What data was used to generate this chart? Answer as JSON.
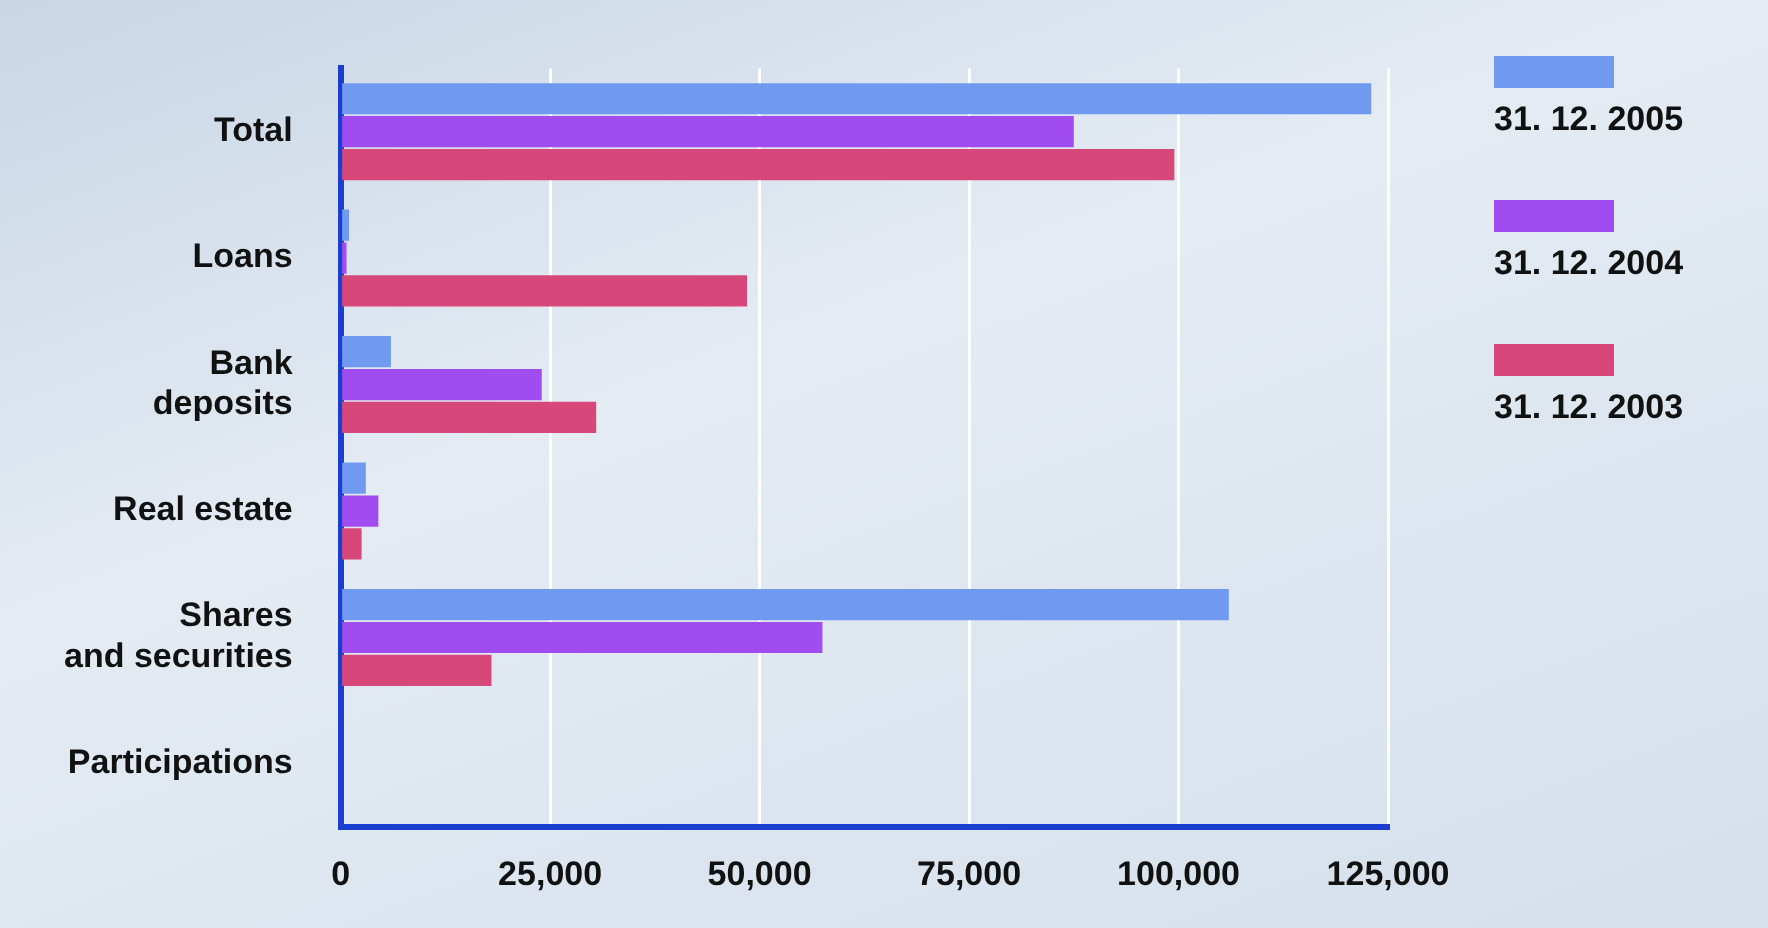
{
  "chart_data": {
    "type": "bar",
    "orientation": "horizontal",
    "categories": [
      "Total",
      "Loans",
      "Bank deposits",
      "Real estate",
      "Shares and securities",
      "Participations"
    ],
    "series": [
      {
        "name": "31. 12. 2005",
        "color": "#6f9af0",
        "values": [
          123000,
          1000,
          6000,
          3000,
          106000,
          0
        ]
      },
      {
        "name": "31. 12. 2004",
        "color": "#a04cf0",
        "values": [
          87500,
          700,
          24000,
          4500,
          57500,
          0
        ]
      },
      {
        "name": "31. 12. 2003",
        "color": "#d8477a",
        "values": [
          99500,
          48500,
          30500,
          2500,
          18000,
          0
        ]
      }
    ],
    "xlim": [
      0,
      125000
    ],
    "xticks": [
      0,
      {
        "value": 25000,
        "label": "25,000"
      },
      {
        "value": 50000,
        "label": "50,000"
      },
      {
        "value": 75000,
        "label": "75,000"
      },
      {
        "value": 100000,
        "label": "100,000"
      },
      {
        "value": 125000,
        "label": "125,000"
      }
    ],
    "grid": "x",
    "legend": "right"
  }
}
